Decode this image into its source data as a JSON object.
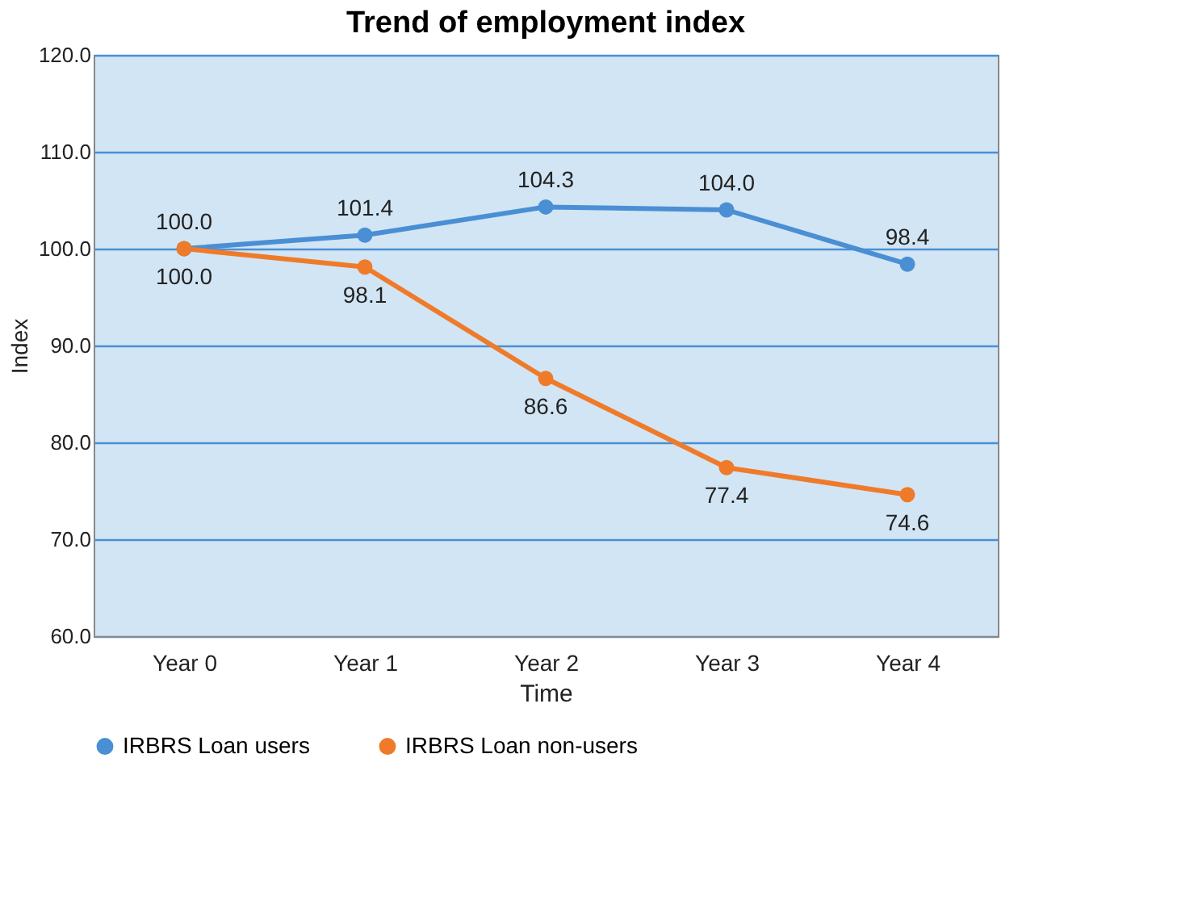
{
  "chart_data": {
    "type": "line",
    "title": "Trend of employment index",
    "xlabel": "Time",
    "ylabel": "Index",
    "categories": [
      "Year 0",
      "Year 1",
      "Year 2",
      "Year 3",
      "Year 4"
    ],
    "series": [
      {
        "name": "IRBRS Loan users",
        "color": "#4a8fd4",
        "values": [
          100.0,
          101.4,
          104.3,
          104.0,
          98.4
        ],
        "value_labels": [
          "100.0",
          "101.4",
          "104.3",
          "104.0",
          "98.4"
        ]
      },
      {
        "name": "IRBRS Loan non-users",
        "color": "#ef7b2a",
        "values": [
          100.0,
          98.1,
          86.6,
          77.4,
          74.6
        ],
        "value_labels": [
          "100.0",
          "98.1",
          "86.6",
          "77.4",
          "74.6"
        ]
      }
    ],
    "ylim": [
      60,
      120
    ],
    "yticks": [
      {
        "value": 60,
        "label": "60.0"
      },
      {
        "value": 70,
        "label": "70.0"
      },
      {
        "value": 80,
        "label": "80.0"
      },
      {
        "value": 90,
        "label": "90.0"
      },
      {
        "value": 100,
        "label": "100.0"
      },
      {
        "value": 110,
        "label": "110.0"
      },
      {
        "value": 120,
        "label": "120.0"
      }
    ],
    "grid": "y",
    "legend": "bottom",
    "marker": "circle",
    "line_style": "solid"
  }
}
